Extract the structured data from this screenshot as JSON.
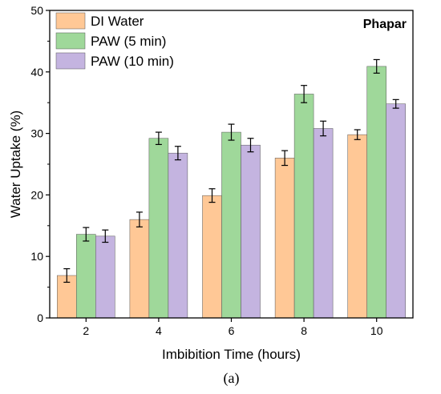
{
  "chart_data": {
    "type": "bar",
    "annotation": "Phapar",
    "caption": "(a)",
    "xlabel": "Imbibition Time (hours)",
    "ylabel": "Water Uptake (%)",
    "categories": [
      "2",
      "4",
      "6",
      "8",
      "10"
    ],
    "ylim": [
      0,
      50
    ],
    "yticks": [
      0,
      10,
      20,
      30,
      40,
      50
    ],
    "grid": false,
    "legend_position": "top-left",
    "error_bars": true,
    "series": [
      {
        "name": "DI Water",
        "color": "#FFC896",
        "values": [
          6.9,
          16.0,
          19.9,
          26.0,
          29.8
        ],
        "errors": [
          1.1,
          1.2,
          1.1,
          1.2,
          0.8
        ]
      },
      {
        "name": "PAW (5 min)",
        "color": "#9FD89A",
        "values": [
          13.6,
          29.2,
          30.2,
          36.4,
          40.9
        ],
        "errors": [
          1.1,
          1.0,
          1.3,
          1.4,
          1.1
        ]
      },
      {
        "name": "PAW (10 min)",
        "color": "#C4B4E0",
        "values": [
          13.3,
          26.8,
          28.1,
          30.8,
          34.8
        ],
        "errors": [
          1.0,
          1.1,
          1.1,
          1.2,
          0.7
        ]
      }
    ]
  }
}
